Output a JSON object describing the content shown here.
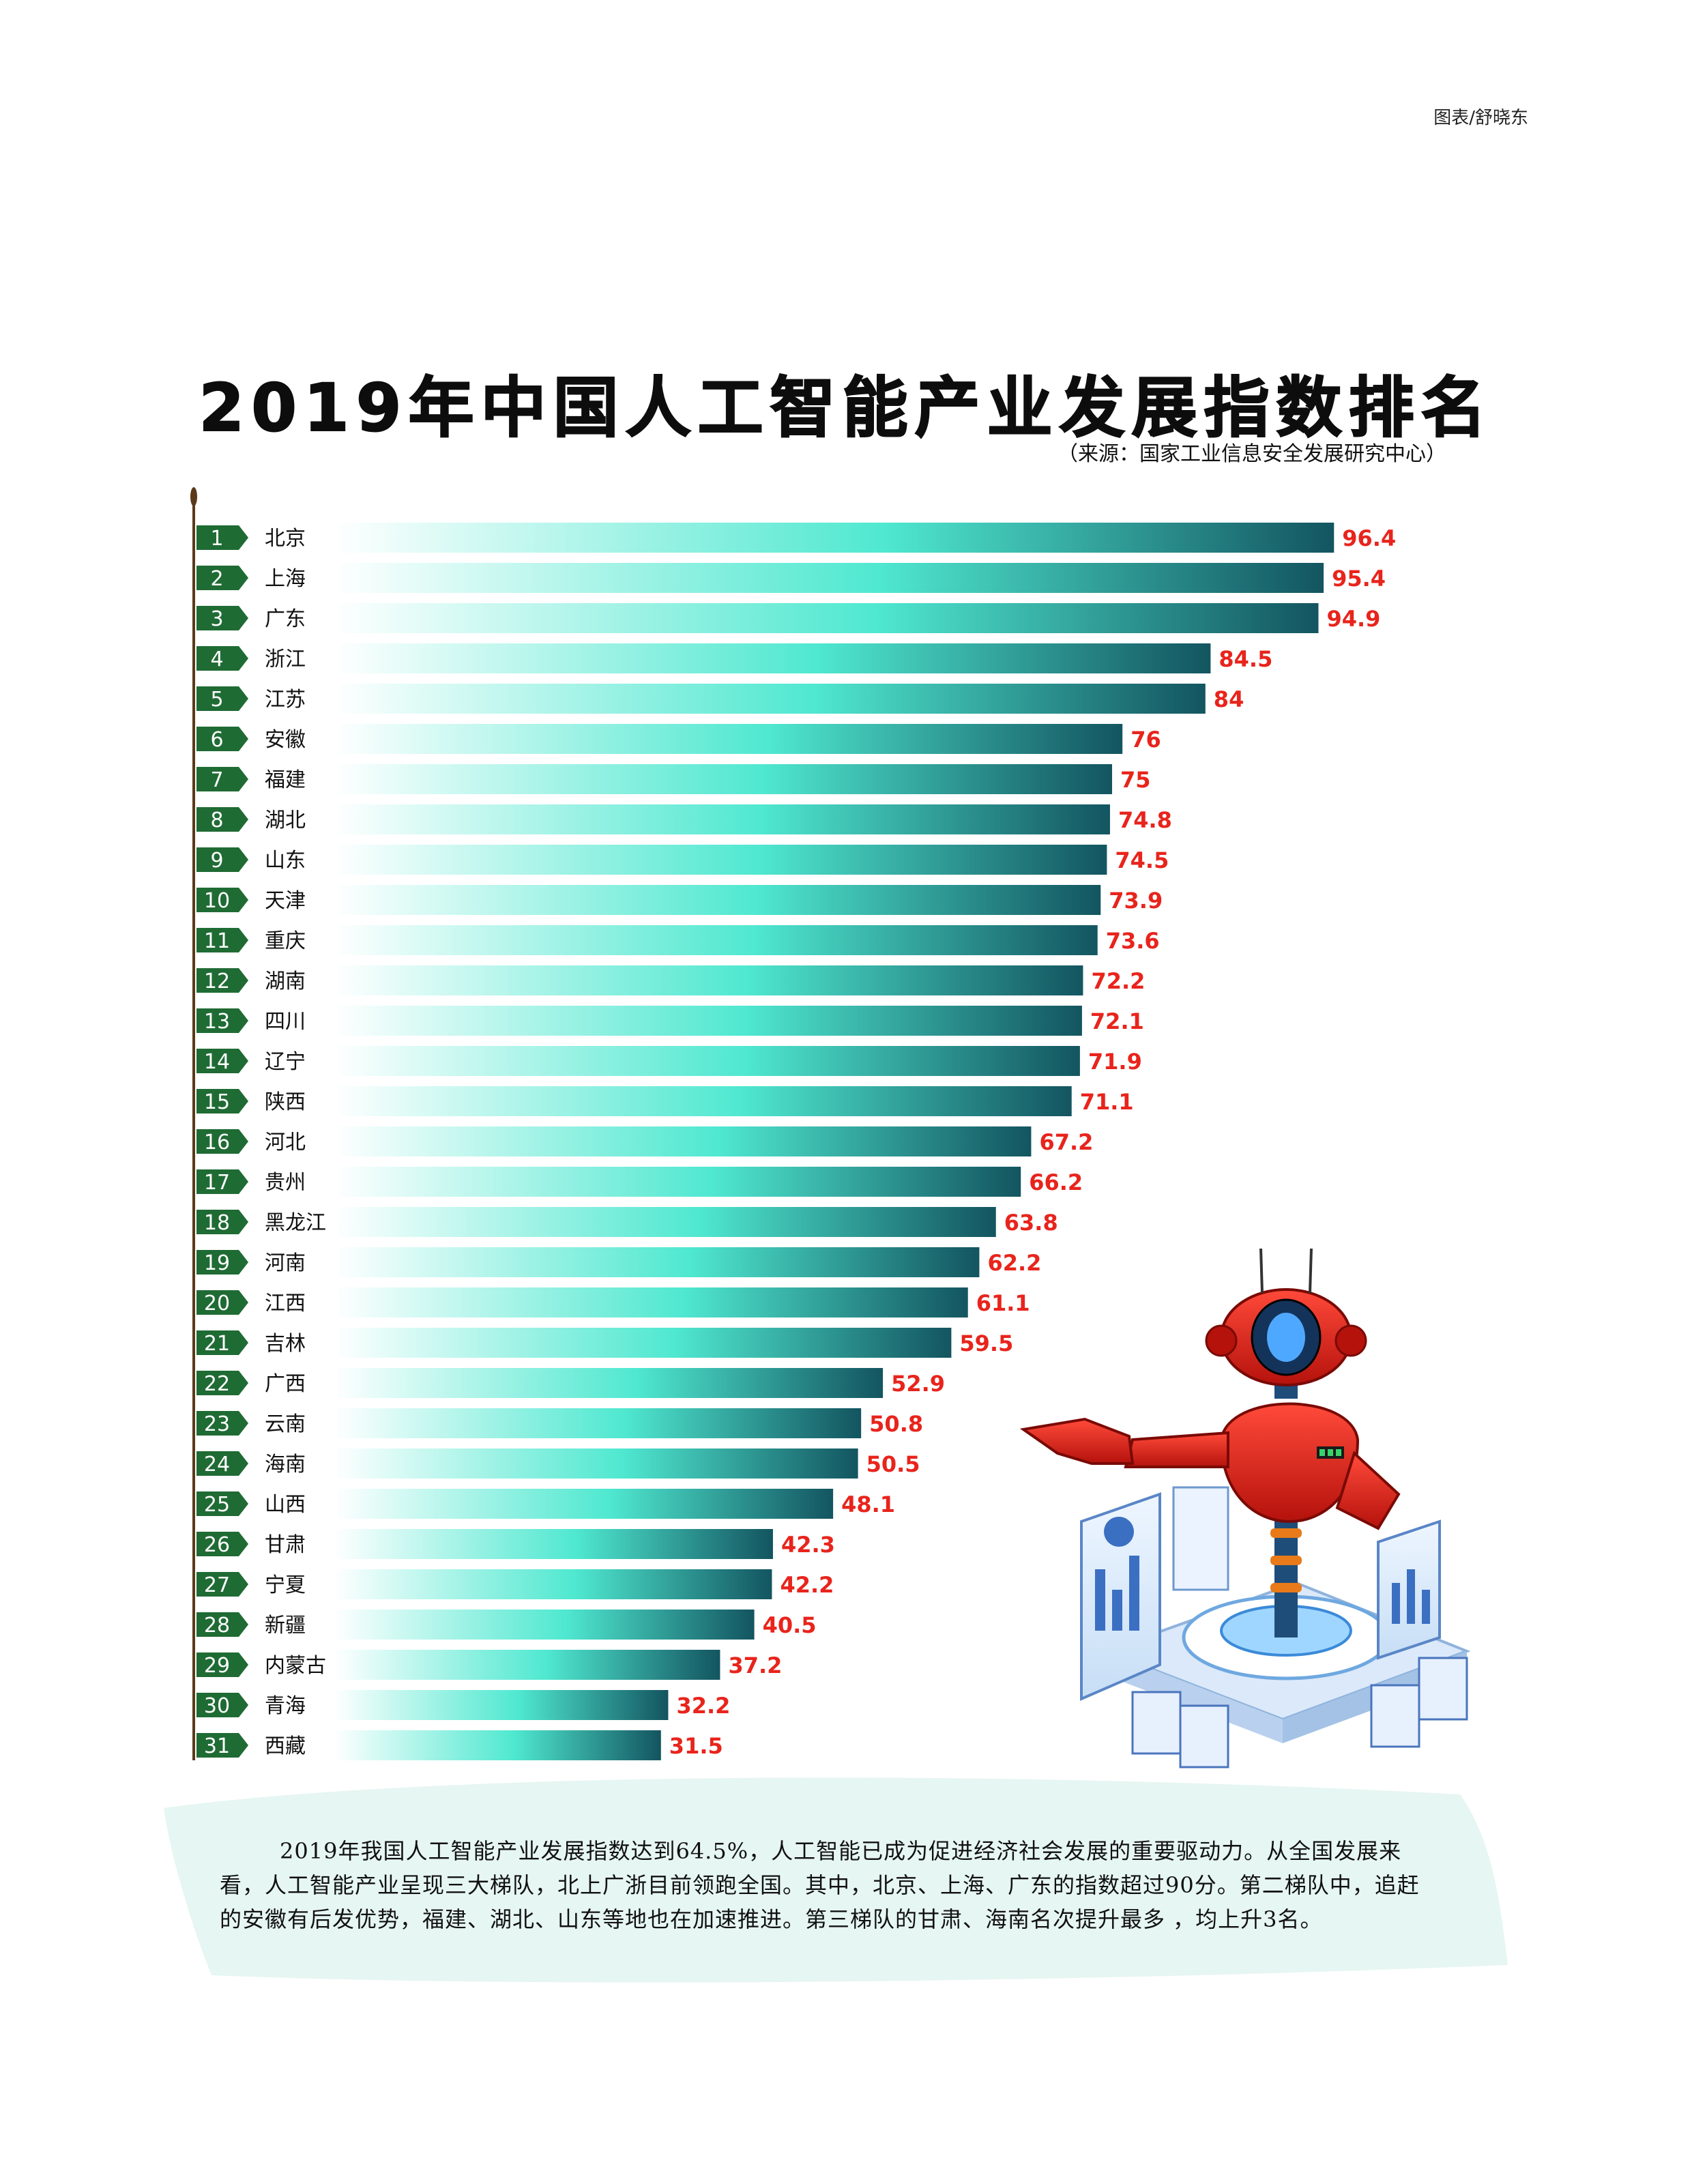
{
  "credit": "图表/舒晓东",
  "title": "2019年中国人工智能产业发展指数排名",
  "source": "（来源：国家工业信息安全发展研究中心）",
  "summary": "2019年我国人工智能产业发展指数达到64.5%，人工智能已成为促进经济社会发展的重要驱动力。从全国发展来看，人工智能产业呈现三大梯队，北上广浙目前领跑全国。其中，北京、上海、广东的指数超过90分。第二梯队中，追赶的安徽有后发优势，福建、湖北、山东等地也在加速推进。第三梯队的甘肃、海南名次提升最多 ，均上升3名。",
  "colors": {
    "rank_badge": "#1f6b34",
    "value_label": "#e8241c",
    "bar_start": "#ffffff",
    "bar_mid": "#4fe8d0",
    "bar_end": "#135560",
    "axis": "#5a3a1a",
    "summary_bg": "#e3f5f1"
  },
  "chart_data": {
    "type": "bar",
    "orientation": "horizontal",
    "title": "2019年中国人工智能产业发展指数排名",
    "xlim": [
      0,
      100
    ],
    "grid": false,
    "ranks": [
      "1",
      "2",
      "3",
      "4",
      "5",
      "6",
      "7",
      "8",
      "9",
      "10",
      "11",
      "12",
      "13",
      "14",
      "15",
      "16",
      "17",
      "18",
      "19",
      "20",
      "21",
      "22",
      "23",
      "24",
      "25",
      "26",
      "27",
      "28",
      "29",
      "30",
      "31"
    ],
    "categories": [
      "北京",
      "上海",
      "广东",
      "浙江",
      "江苏",
      "安徽",
      "福建",
      "湖北",
      "山东",
      "天津",
      "重庆",
      "湖南",
      "四川",
      "辽宁",
      "陕西",
      "河北",
      "贵州",
      "黑龙江",
      "河南",
      "江西",
      "吉林",
      "广西",
      "云南",
      "海南",
      "山西",
      "甘肃",
      "宁夏",
      "新疆",
      "内蒙古",
      "青海",
      "西藏"
    ],
    "values": [
      96.4,
      95.4,
      94.9,
      84.5,
      84,
      76,
      75,
      74.8,
      74.5,
      73.9,
      73.6,
      72.2,
      72.1,
      71.9,
      71.1,
      67.2,
      66.2,
      63.8,
      62.2,
      61.1,
      59.5,
      52.9,
      50.8,
      50.5,
      48.1,
      42.3,
      42.2,
      40.5,
      37.2,
      32.2,
      31.5
    ],
    "value_labels": [
      "96.4",
      "95.4",
      "94.9",
      "84.5",
      "84",
      "76",
      "75",
      "74.8",
      "74.5",
      "73.9",
      "73.6",
      "72.2",
      "72.1",
      "71.9",
      "71.1",
      "67.2",
      "66.2",
      "63.8",
      "62.2",
      "61.1",
      "59.5",
      "52.9",
      "50.8",
      "50.5",
      "48.1",
      "42.3",
      "42.2",
      "40.5",
      "37.2",
      "32.2",
      "31.5"
    ]
  }
}
